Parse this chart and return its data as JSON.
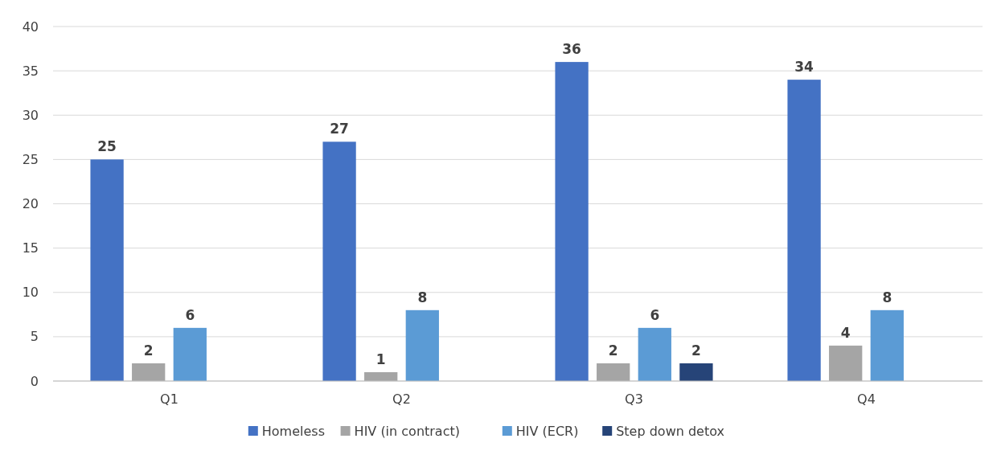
{
  "chart_data": {
    "type": "bar",
    "categories": [
      "Q1",
      "Q2",
      "Q3",
      "Q4"
    ],
    "series": [
      {
        "name": "Homeless",
        "color": "#4472c4",
        "values": [
          25,
          27,
          36,
          34
        ]
      },
      {
        "name": "HIV (in contract)",
        "color": "#a5a5a5",
        "values": [
          2,
          1,
          2,
          4
        ]
      },
      {
        "name": "HIV (ECR)",
        "color": "#5b9bd5",
        "values": [
          6,
          8,
          6,
          8
        ]
      },
      {
        "name": "Step down detox",
        "color": "#264478",
        "values": [
          null,
          null,
          2,
          null
        ]
      }
    ],
    "ylim": [
      0,
      40
    ],
    "yticks": [
      0,
      5,
      10,
      15,
      20,
      25,
      30,
      35,
      40
    ],
    "grid": "y",
    "legend": "bottom",
    "data_labels": true
  }
}
